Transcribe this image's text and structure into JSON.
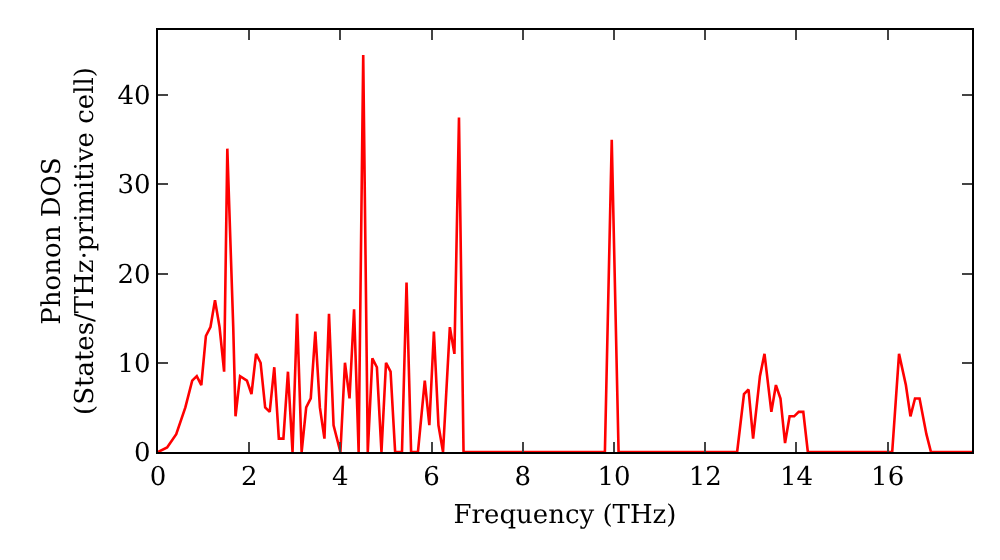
{
  "chart_data": {
    "type": "line",
    "xlabel": "Frequency (THz)",
    "ylabel": "Phonon DOS\n(States/THz·primitive cell)",
    "xlim": [
      0,
      17.85
    ],
    "ylim": [
      0,
      47.3
    ],
    "xticks": [
      0,
      2,
      4,
      6,
      8,
      10,
      12,
      14,
      16
    ],
    "yticks": [
      0,
      10,
      20,
      30,
      40
    ],
    "marker": "none",
    "line_style": "solid",
    "series": [
      {
        "color": "#ff0000",
        "x": [
          0,
          0.2,
          0.4,
          0.6,
          0.75,
          0.85,
          0.95,
          1.05,
          1.15,
          1.25,
          1.35,
          1.45,
          1.52,
          1.65,
          1.7,
          1.8,
          1.95,
          2.05,
          2.15,
          2.25,
          2.35,
          2.45,
          2.55,
          2.65,
          2.75,
          2.85,
          2.95,
          3.05,
          3.15,
          3.25,
          3.35,
          3.45,
          3.55,
          3.65,
          3.75,
          3.85,
          4.0,
          4.1,
          4.2,
          4.3,
          4.4,
          4.5,
          4.6,
          4.7,
          4.8,
          4.9,
          5.0,
          5.1,
          5.2,
          5.35,
          5.45,
          5.55,
          5.7,
          5.85,
          5.95,
          6.05,
          6.15,
          6.25,
          6.4,
          6.5,
          6.6,
          6.7,
          9.8,
          9.95,
          10.1,
          12.7,
          12.85,
          12.95,
          13.05,
          13.2,
          13.3,
          13.45,
          13.55,
          13.65,
          13.75,
          13.85,
          13.95,
          14.05,
          14.15,
          14.25,
          16.1,
          16.25,
          16.4,
          16.5,
          16.6,
          16.7,
          16.85,
          16.95,
          17.85
        ],
        "values": [
          0,
          0.5,
          2,
          5,
          8,
          8.5,
          7.5,
          13,
          14,
          17,
          14,
          9,
          34,
          14,
          4,
          8.5,
          8,
          6.5,
          11,
          10,
          5,
          4.5,
          9.5,
          1.5,
          1.5,
          9,
          0,
          15.5,
          0,
          5,
          6,
          13.5,
          5,
          1.5,
          15.5,
          3,
          0,
          10,
          6,
          16,
          0,
          44.5,
          0,
          10.5,
          9.5,
          0,
          10,
          9,
          0,
          0,
          19,
          0,
          0,
          8,
          3,
          13.5,
          3,
          0,
          14,
          11,
          37.5,
          0,
          0,
          35,
          0,
          0,
          6.5,
          7,
          1.5,
          8.5,
          11,
          4.5,
          7.5,
          6,
          1,
          4,
          4,
          4.5,
          4.5,
          0,
          0,
          11,
          7.5,
          4,
          6,
          6,
          2,
          0,
          0
        ]
      }
    ]
  }
}
